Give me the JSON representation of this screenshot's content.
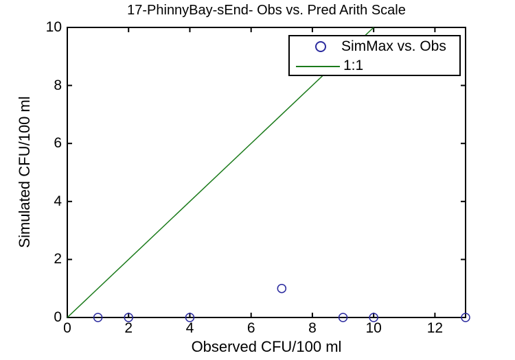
{
  "chart_data": {
    "type": "scatter",
    "title": "17-PhinnyBay-sEnd- Obs vs. Pred Arith Scale",
    "xlabel": "Observed CFU/100 ml",
    "ylabel": "Simulated CFU/100 ml",
    "xlim": [
      0,
      13
    ],
    "ylim": [
      0,
      10
    ],
    "xticks": [
      0,
      2,
      4,
      6,
      8,
      10,
      12
    ],
    "yticks": [
      0,
      2,
      4,
      6,
      8,
      10
    ],
    "grid": false,
    "legend_position": "top-right-inside",
    "background": "#ffffff",
    "axis_color": "#000000",
    "series": [
      {
        "name": "SimMax vs. Obs",
        "kind": "scatter",
        "marker": "open-circle",
        "color": "#2a2a9e",
        "points": [
          [
            1,
            0
          ],
          [
            2,
            0
          ],
          [
            4,
            0
          ],
          [
            7,
            1
          ],
          [
            9,
            0
          ],
          [
            10,
            0
          ],
          [
            13,
            0
          ]
        ]
      },
      {
        "name": "1:1",
        "kind": "line",
        "color": "#1a7a1a",
        "points": [
          [
            0,
            0
          ],
          [
            10,
            10
          ]
        ]
      }
    ]
  }
}
